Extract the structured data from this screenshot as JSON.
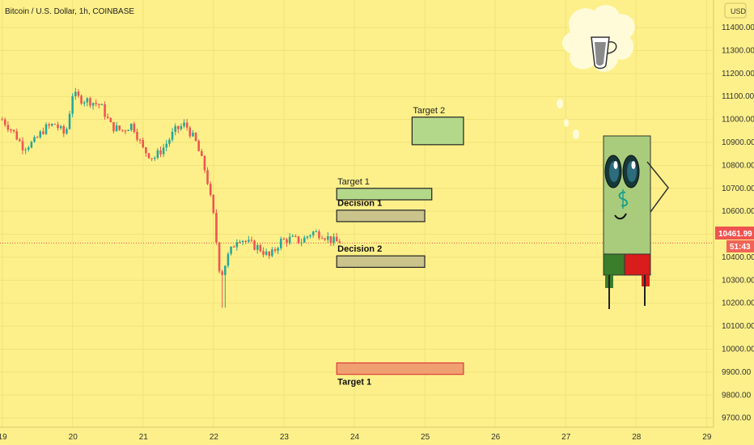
{
  "chart_data": {
    "type": "candlestick",
    "title": "Bitcoin / U.S. Dollar, 1h, COINBASE",
    "currency": "USD",
    "x_ticks": [
      "19",
      "20",
      "21",
      "22",
      "23",
      "24",
      "25",
      "26",
      "27",
      "28",
      "29"
    ],
    "y_ticks": [
      "11400.00",
      "11300.00",
      "11200.00",
      "11100.00",
      "11000.00",
      "10900.00",
      "10800.00",
      "10700.00",
      "10600.00",
      "10500.00",
      "10400.00",
      "10300.00",
      "10200.00",
      "10100.00",
      "10000.00",
      "9900.00",
      "9800.00",
      "9700.00"
    ],
    "ylim": [
      9660,
      11520
    ],
    "xlim": [
      18.97,
      29.1
    ],
    "last_price": "10461.99",
    "countdown": "51:43",
    "colors": {
      "background": "#fdf08a",
      "up": "#26a69a",
      "down": "#ef5350",
      "price_line": "#ef5350",
      "grid": "#f1e27a"
    },
    "candles_approx": [
      {
        "x": 19.0,
        "price": 11000
      },
      {
        "x": 19.15,
        "price": 10950
      },
      {
        "x": 19.3,
        "price": 10880
      },
      {
        "x": 19.45,
        "price": 10900
      },
      {
        "x": 19.6,
        "price": 10960
      },
      {
        "x": 19.75,
        "price": 10980
      },
      {
        "x": 19.9,
        "price": 10930
      },
      {
        "x": 20.0,
        "price": 11110
      },
      {
        "x": 20.1,
        "price": 11090
      },
      {
        "x": 20.25,
        "price": 11080
      },
      {
        "x": 20.4,
        "price": 11060
      },
      {
        "x": 20.55,
        "price": 10970
      },
      {
        "x": 20.7,
        "price": 10950
      },
      {
        "x": 20.85,
        "price": 10980
      },
      {
        "x": 21.0,
        "price": 10870
      },
      {
        "x": 21.15,
        "price": 10830
      },
      {
        "x": 21.3,
        "price": 10880
      },
      {
        "x": 21.45,
        "price": 10950
      },
      {
        "x": 21.6,
        "price": 10980
      },
      {
        "x": 21.75,
        "price": 10900
      },
      {
        "x": 21.9,
        "price": 10760
      },
      {
        "x": 22.0,
        "price": 10580
      },
      {
        "x": 22.1,
        "price": 10310
      },
      {
        "x": 22.2,
        "price": 10400
      },
      {
        "x": 22.35,
        "price": 10490
      },
      {
        "x": 22.5,
        "price": 10460
      },
      {
        "x": 22.65,
        "price": 10440
      },
      {
        "x": 22.8,
        "price": 10400
      },
      {
        "x": 22.95,
        "price": 10470
      },
      {
        "x": 23.1,
        "price": 10480
      },
      {
        "x": 23.25,
        "price": 10470
      },
      {
        "x": 23.4,
        "price": 10510
      },
      {
        "x": 23.55,
        "price": 10500
      },
      {
        "x": 23.7,
        "price": 10470
      },
      {
        "x": 23.8,
        "price": 10462
      }
    ],
    "annotations": [
      {
        "label": "Target 2",
        "price_low": 10890,
        "price_high": 11010,
        "x_start": 24.82,
        "x_end": 25.55,
        "fill": "#b4d88a",
        "border": "#222222",
        "label_position": "above",
        "bold": false
      },
      {
        "label": "Target 1",
        "price_low": 10650,
        "price_high": 10700,
        "x_start": 23.75,
        "x_end": 25.1,
        "fill": "#b4d88a",
        "border": "#222222",
        "label_position": "above",
        "bold": false
      },
      {
        "label": "Decision 1",
        "price_low": 10555,
        "price_high": 10605,
        "x_start": 23.75,
        "x_end": 25.0,
        "fill": "#cbc38c",
        "border": "#222222",
        "label_position": "above",
        "bold": true
      },
      {
        "label": "Decision 2",
        "price_low": 10356,
        "price_high": 10406,
        "x_start": 23.75,
        "x_end": 25.0,
        "fill": "#cbc38c",
        "border": "#222222",
        "label_position": "above",
        "bold": true
      },
      {
        "label": "Target 1",
        "price_low": 9890,
        "price_high": 9940,
        "x_start": 23.75,
        "x_end": 25.55,
        "fill": "#f0a070",
        "border": "#d93b3b",
        "label_position": "below",
        "bold": true
      }
    ]
  },
  "mascot": {
    "name": "dollar-bill-candle-character",
    "thought": "coffee-cup-thought-bubble",
    "body_color": "#a8cc7c",
    "foot_colors": [
      "#3a7d2a",
      "#d91c1c"
    ]
  }
}
